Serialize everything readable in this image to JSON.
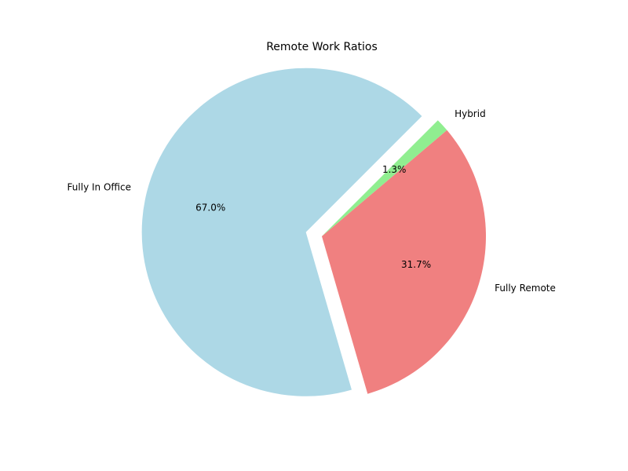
{
  "chart_data": {
    "type": "pie",
    "title": "Remote Work Ratios",
    "slices": [
      {
        "label": "Fully In Office",
        "value": 67.0,
        "pct_label": "67.0%",
        "color": "#add8e6",
        "exploded": true
      },
      {
        "label": "Fully Remote",
        "value": 31.7,
        "pct_label": "31.7%",
        "color": "#f08080",
        "exploded": false
      },
      {
        "label": "Hybrid",
        "value": 1.3,
        "pct_label": "1.3%",
        "color": "#90ee90",
        "exploded": false
      }
    ],
    "start_angle_deg": 45,
    "direction": "counterclockwise",
    "legend": "none"
  }
}
